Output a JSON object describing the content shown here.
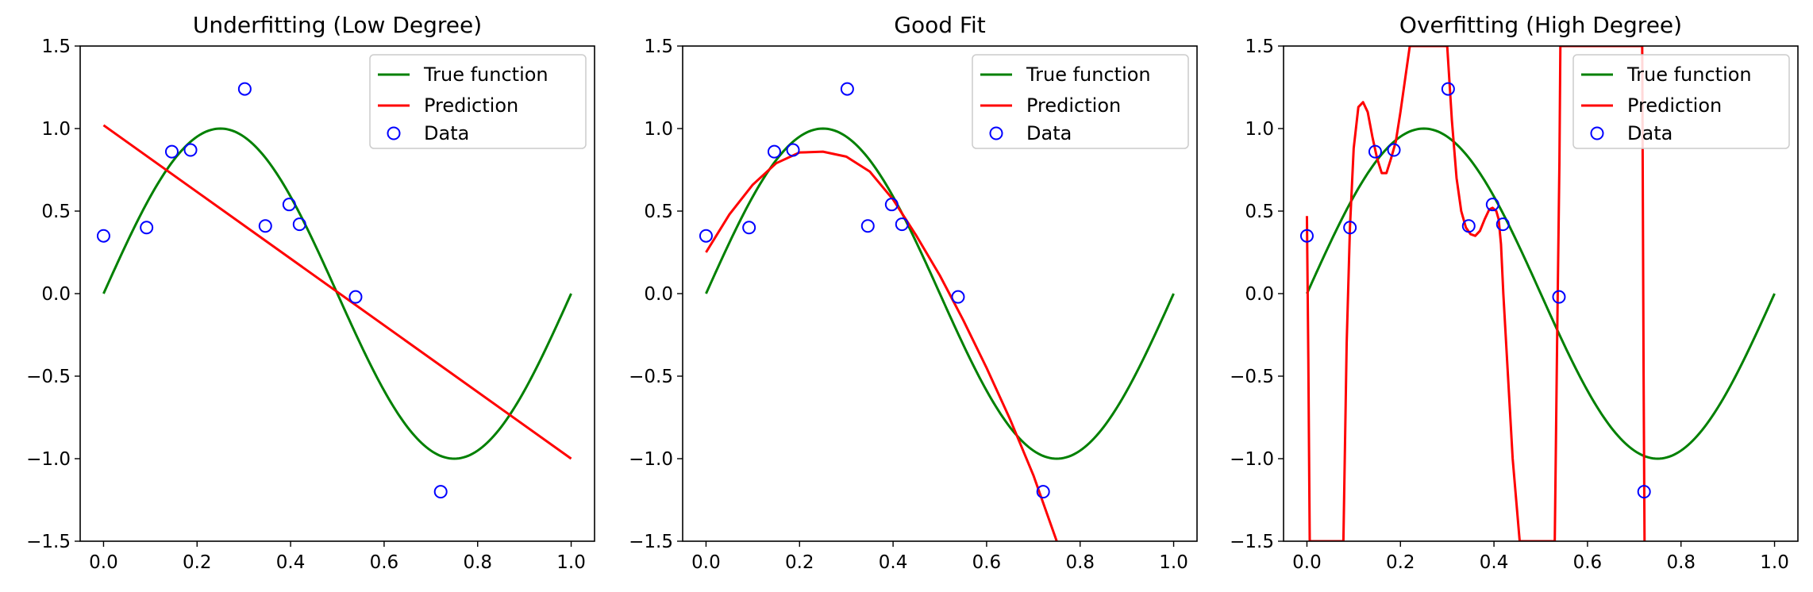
{
  "colors": {
    "true_function": "#008000",
    "prediction": "#ff0000",
    "data": "#0000ff",
    "legend_border": "#cccccc"
  },
  "chart_data": [
    {
      "type": "line",
      "title": "Underfitting (Low Degree)",
      "xlabel": "",
      "ylabel": "",
      "xlim": [
        -0.05,
        1.05
      ],
      "ylim": [
        -1.5,
        1.5
      ],
      "xticks": [
        "0.0",
        "0.2",
        "0.4",
        "0.6",
        "0.8",
        "1.0"
      ],
      "yticks": [
        "−1.5",
        "−1.0",
        "−0.5",
        "0.0",
        "0.5",
        "1.0",
        "1.5"
      ],
      "legend_position": "top-right",
      "legend": [
        "True function",
        "Prediction",
        "Data"
      ],
      "true_function": "sin(2*pi*x) on [0, 1]",
      "prediction": {
        "x": [
          0.0,
          1.0
        ],
        "y": [
          1.02,
          -1.0
        ]
      },
      "data": {
        "x": [
          0.0,
          0.092,
          0.146,
          0.186,
          0.302,
          0.346,
          0.397,
          0.419,
          0.539,
          0.721
        ],
        "y": [
          0.35,
          0.4,
          0.86,
          0.87,
          1.24,
          0.41,
          0.54,
          0.42,
          -0.02,
          -1.2
        ]
      }
    },
    {
      "type": "line",
      "title": "Good Fit",
      "xlabel": "",
      "ylabel": "",
      "xlim": [
        -0.05,
        1.05
      ],
      "ylim": [
        -1.5,
        1.5
      ],
      "xticks": [
        "0.0",
        "0.2",
        "0.4",
        "0.6",
        "0.8",
        "1.0"
      ],
      "yticks": [
        "−1.5",
        "−1.0",
        "−0.5",
        "0.0",
        "0.5",
        "1.0",
        "1.5"
      ],
      "legend_position": "top-right",
      "legend": [
        "True function",
        "Prediction",
        "Data"
      ],
      "true_function": "sin(2*pi*x) on [0, 1]",
      "prediction": {
        "x": [
          0.0,
          0.05,
          0.1,
          0.15,
          0.2,
          0.25,
          0.3,
          0.35,
          0.4,
          0.45,
          0.5,
          0.55,
          0.6,
          0.65,
          0.7,
          0.75
        ],
        "y": [
          0.25,
          0.48,
          0.66,
          0.79,
          0.855,
          0.86,
          0.83,
          0.74,
          0.57,
          0.35,
          0.11,
          -0.16,
          -0.45,
          -0.76,
          -1.1,
          -1.5
        ]
      },
      "data": {
        "x": [
          0.0,
          0.092,
          0.146,
          0.186,
          0.302,
          0.346,
          0.397,
          0.419,
          0.539,
          0.721
        ],
        "y": [
          0.35,
          0.4,
          0.86,
          0.87,
          1.24,
          0.41,
          0.54,
          0.42,
          -0.02,
          -1.2
        ]
      }
    },
    {
      "type": "line",
      "title": "Overfitting (High Degree)",
      "xlabel": "",
      "ylabel": "",
      "xlim": [
        -0.05,
        1.05
      ],
      "ylim": [
        -1.5,
        1.5
      ],
      "xticks": [
        "0.0",
        "0.2",
        "0.4",
        "0.6",
        "0.8",
        "1.0"
      ],
      "yticks": [
        "−1.5",
        "−1.0",
        "−0.5",
        "0.0",
        "0.5",
        "1.0",
        "1.5"
      ],
      "legend_position": "top-right",
      "legend": [
        "True function",
        "Prediction",
        "Data"
      ],
      "true_function": "sin(2*pi*x) on [0, 1]",
      "prediction": {
        "x": [
          0.0,
          0.003,
          0.006,
          0.078,
          0.085,
          0.092,
          0.1,
          0.11,
          0.12,
          0.13,
          0.14,
          0.15,
          0.16,
          0.17,
          0.18,
          0.19,
          0.2,
          0.21,
          0.22,
          0.23,
          0.24,
          0.25,
          0.26,
          0.3,
          0.31,
          0.32,
          0.33,
          0.34,
          0.35,
          0.36,
          0.37,
          0.38,
          0.39,
          0.397,
          0.405,
          0.41,
          0.415,
          0.42,
          0.43,
          0.44,
          0.455,
          0.53,
          0.535,
          0.54,
          0.542,
          0.717,
          0.72,
          0.722
        ],
        "y": [
          0.47,
          -0.4,
          -1.5,
          -1.5,
          -0.3,
          0.4,
          0.88,
          1.13,
          1.16,
          1.1,
          0.95,
          0.82,
          0.73,
          0.73,
          0.82,
          0.92,
          1.1,
          1.3,
          1.5,
          1.5,
          1.5,
          1.5,
          1.5,
          1.5,
          1.05,
          0.7,
          0.5,
          0.4,
          0.36,
          0.35,
          0.38,
          0.45,
          0.51,
          0.52,
          0.5,
          0.45,
          0.3,
          0.0,
          -0.5,
          -1.0,
          -1.5,
          -1.5,
          -0.3,
          0.8,
          1.5,
          1.5,
          -0.5,
          -1.5
        ]
      },
      "data": {
        "x": [
          0.0,
          0.092,
          0.146,
          0.186,
          0.302,
          0.346,
          0.397,
          0.419,
          0.539,
          0.721
        ],
        "y": [
          0.35,
          0.4,
          0.86,
          0.87,
          1.24,
          0.41,
          0.54,
          0.42,
          -0.02,
          -1.2
        ]
      }
    }
  ]
}
